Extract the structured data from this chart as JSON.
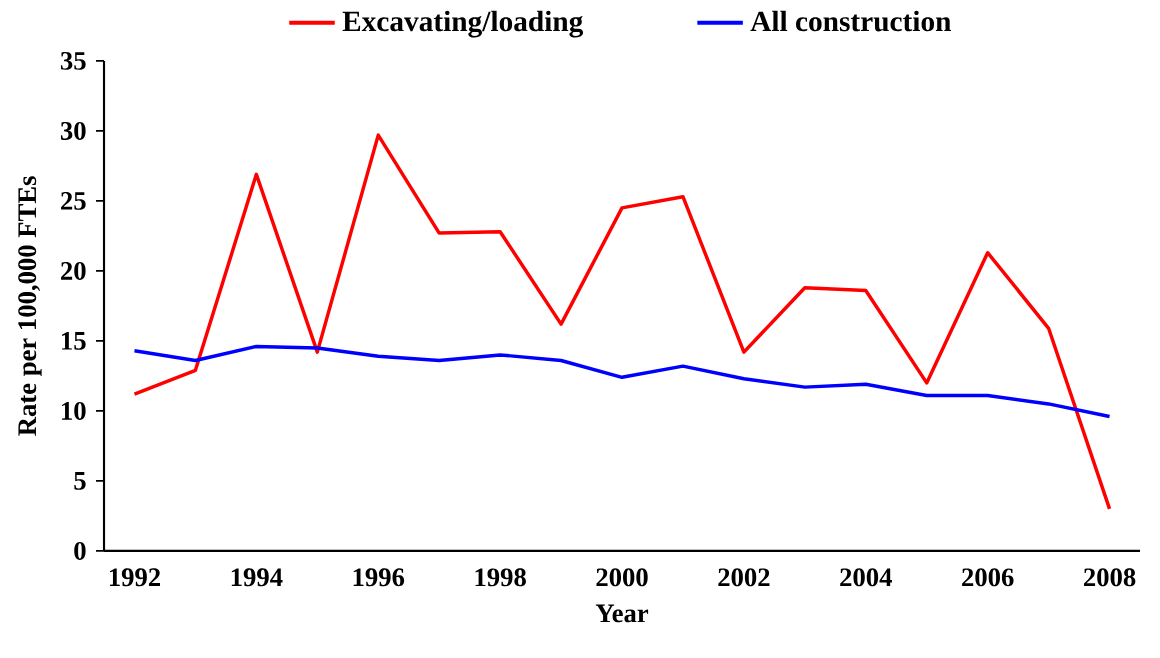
{
  "chart_data": {
    "type": "line",
    "xlabel": "Year",
    "ylabel": "Rate per 100,000 FTEs",
    "categories": [
      "1992",
      null,
      "1994",
      null,
      "1996",
      null,
      "1998",
      null,
      "2000",
      null,
      "2002",
      null,
      "2004",
      null,
      "2006",
      null,
      "2008"
    ],
    "series": [
      {
        "name": "Excavating/loading",
        "color": "#ff0000",
        "values": [
          11.2,
          12.9,
          26.9,
          14.2,
          29.7,
          22.7,
          22.8,
          16.2,
          24.5,
          25.3,
          14.2,
          18.8,
          18.6,
          12.0,
          21.3,
          15.9,
          3.0
        ]
      },
      {
        "name": "All construction",
        "color": "#0000ff",
        "values": [
          14.3,
          13.6,
          14.6,
          14.5,
          13.9,
          13.6,
          14.0,
          13.6,
          12.4,
          13.2,
          12.3,
          11.7,
          11.9,
          11.1,
          11.1,
          10.5,
          9.6
        ]
      }
    ],
    "ylim": [
      0,
      35
    ],
    "yticks": [
      0,
      5,
      10,
      15,
      20,
      25,
      30,
      35
    ],
    "legend": "top"
  }
}
